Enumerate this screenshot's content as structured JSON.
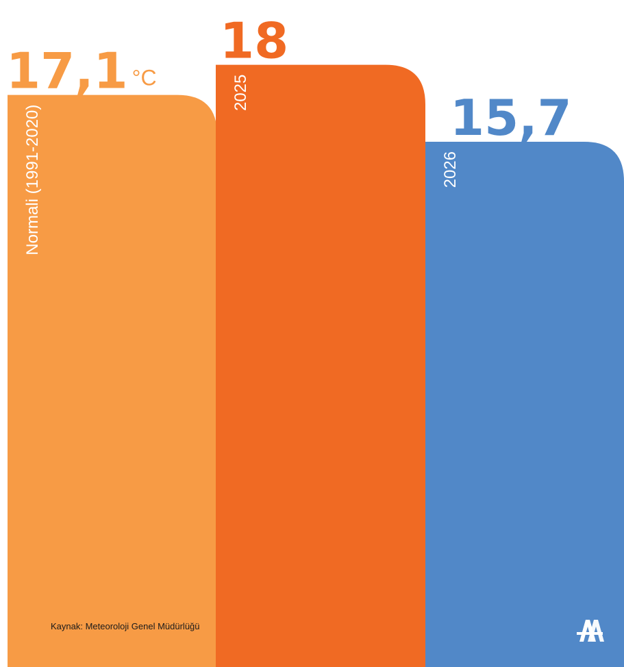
{
  "chart_data": {
    "type": "bar",
    "categories": [
      "Normali (1991-2020)",
      "2025",
      "2026"
    ],
    "values": [
      17.1,
      18,
      15.7
    ],
    "value_labels": [
      "17,1",
      "18",
      "15,7"
    ],
    "unit": "°C",
    "colors": [
      "#F79B45",
      "#F06A23",
      "#5188C8"
    ],
    "title": "",
    "xlabel": "",
    "ylabel": ""
  },
  "source": "Kaynak: Meteoroloji Genel Müdürlüğü",
  "logo": {
    "icon": "aa-logo-icon",
    "color": "#5188C8"
  }
}
